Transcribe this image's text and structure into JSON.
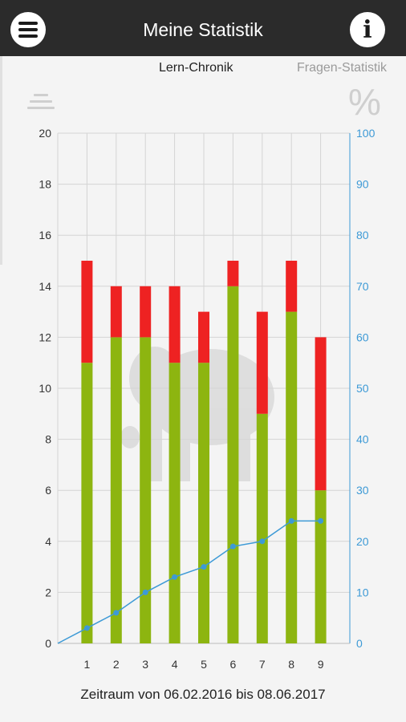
{
  "appbar": {
    "title": "Meine Statistik",
    "menu_icon": "hamburger-menu-icon",
    "info_icon": "info-icon",
    "info_glyph": "i"
  },
  "tabs": [
    {
      "label": "Lern-Chronik",
      "active": true
    },
    {
      "label": "Fragen-Statistik",
      "active": false
    }
  ],
  "toolbar": {
    "sort_icon": "sort-lines-icon",
    "percent_label": "%"
  },
  "chart_data": {
    "type": "bar",
    "stacked": true,
    "categories": [
      "1",
      "2",
      "3",
      "4",
      "5",
      "6",
      "7",
      "8",
      "9"
    ],
    "series": [
      {
        "color": "#8db510",
        "values": [
          11,
          12,
          12,
          11,
          11,
          14,
          9,
          13,
          6
        ]
      },
      {
        "color": "#ee2222",
        "values": [
          4,
          2,
          2,
          3,
          2,
          1,
          4,
          2,
          6
        ]
      }
    ],
    "line_series": {
      "axis": "right",
      "color": "#3d9ad6",
      "values": [
        3,
        6,
        10,
        13,
        15,
        19,
        20,
        24,
        24
      ]
    },
    "ylim_left": [
      0,
      20
    ],
    "yticks_left": [
      "0",
      "2",
      "4",
      "6",
      "8",
      "10",
      "12",
      "14",
      "16",
      "18",
      "20"
    ],
    "ylim_right": [
      0,
      100
    ],
    "yticks_right": [
      "0",
      "10",
      "20",
      "30",
      "40",
      "50",
      "60",
      "70",
      "80",
      "90",
      "100"
    ],
    "grid": true,
    "right_axis_color": "#3d9ad6",
    "background_watermark": "elephant-watermark"
  },
  "footer": {
    "text": "Zeitraum von 06.02.2016 bis 08.06.2017"
  }
}
